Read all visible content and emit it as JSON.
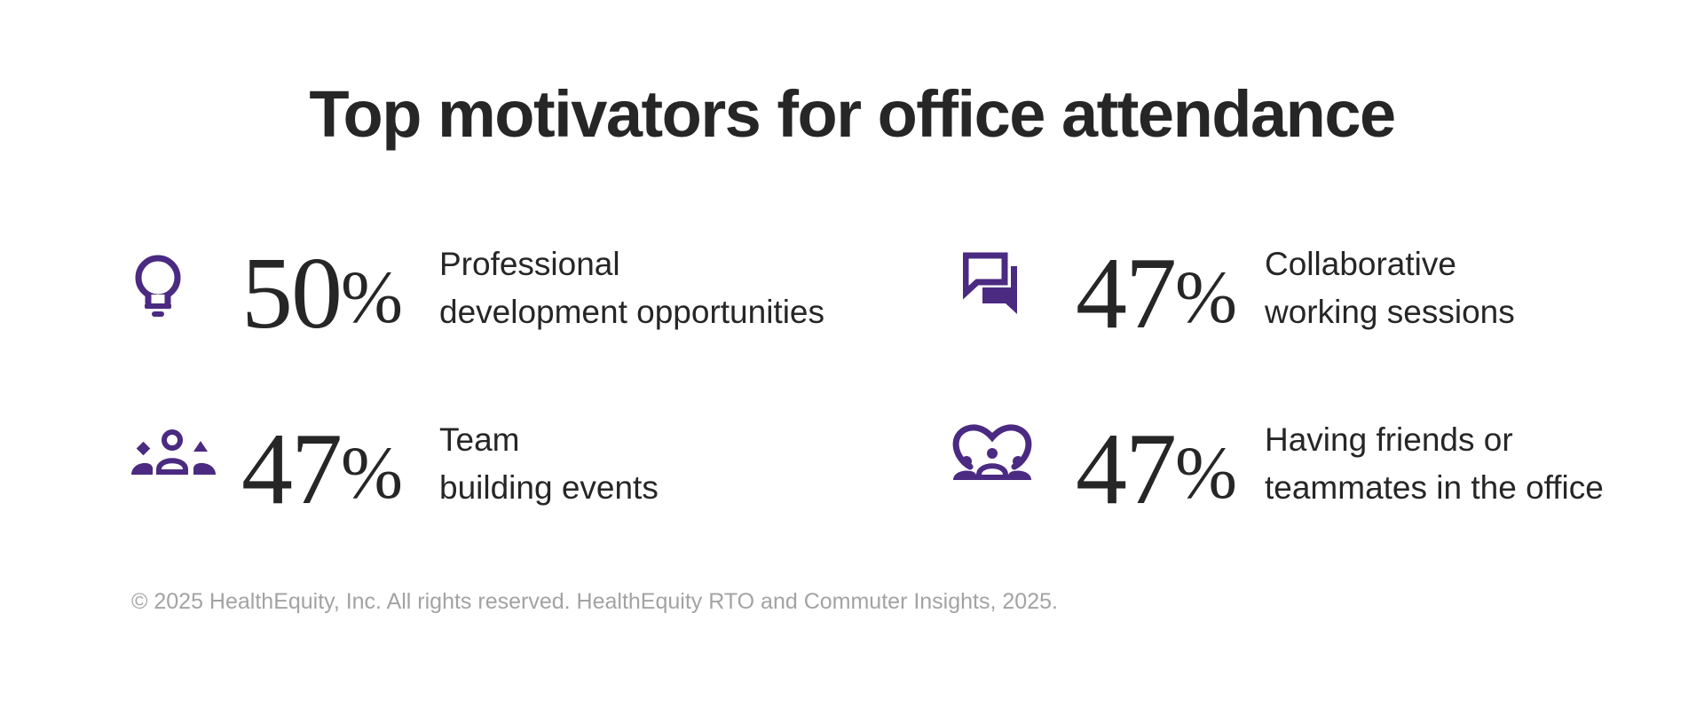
{
  "title": "Top motivators for office attendance",
  "accent_color": "#4b2a82",
  "stats": [
    {
      "icon": "lightbulb-icon",
      "value": "50",
      "unit": "%",
      "label_line1": "Professional",
      "label_line2": "development opportunities"
    },
    {
      "icon": "chat-bubbles-icon",
      "value": "47",
      "unit": "%",
      "label_line1": "Collaborative",
      "label_line2": "working sessions"
    },
    {
      "icon": "team-group-icon",
      "value": "47",
      "unit": "%",
      "label_line1": "Team",
      "label_line2": "building events"
    },
    {
      "icon": "friends-heart-icon",
      "value": "47",
      "unit": "%",
      "label_line1": "Having friends or",
      "label_line2": "teammates in the office"
    }
  ],
  "footer": "© 2025 HealthEquity, Inc. All rights reserved. HealthEquity RTO and Commuter Insights, 2025."
}
